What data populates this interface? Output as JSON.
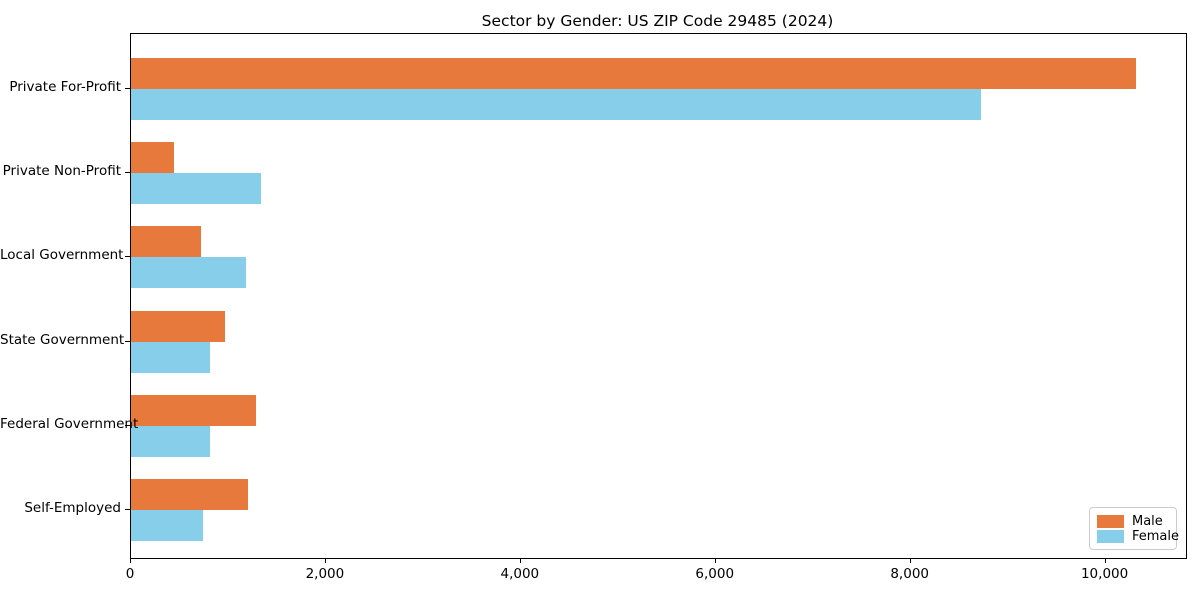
{
  "title": "Sector by Gender: US ZIP Code 29485 (2024)",
  "colors": {
    "male": "#e8793c",
    "female": "#87ceeb",
    "spine": "#000000",
    "legend_border": "#cccccc",
    "background": "#ffffff"
  },
  "legend": {
    "position": "lower right",
    "items": [
      {
        "label": "Male",
        "color": "#e8793c"
      },
      {
        "label": "Female",
        "color": "#87ceeb"
      }
    ]
  },
  "chart_data": {
    "type": "bar",
    "orientation": "horizontal",
    "title": "Sector by Gender: US ZIP Code 29485 (2024)",
    "categories": [
      "Private For-Profit",
      "Private Non-Profit",
      "Local Government",
      "State Government",
      "Federal Government",
      "Self-Employed"
    ],
    "series": [
      {
        "name": "Male",
        "color": "#e8793c",
        "values": [
          10310,
          440,
          720,
          960,
          1280,
          1200
        ]
      },
      {
        "name": "Female",
        "color": "#87ceeb",
        "values": [
          8720,
          1330,
          1180,
          810,
          810,
          740
        ]
      }
    ],
    "xlabel": "",
    "ylabel": "",
    "xlim": [
      0,
      10825
    ],
    "xticks": [
      0,
      2000,
      4000,
      6000,
      8000,
      10000
    ],
    "xtick_labels": [
      "0",
      "2,000",
      "4,000",
      "6,000",
      "8,000",
      "10,000"
    ],
    "grid": false,
    "legend_position": "lower right"
  }
}
